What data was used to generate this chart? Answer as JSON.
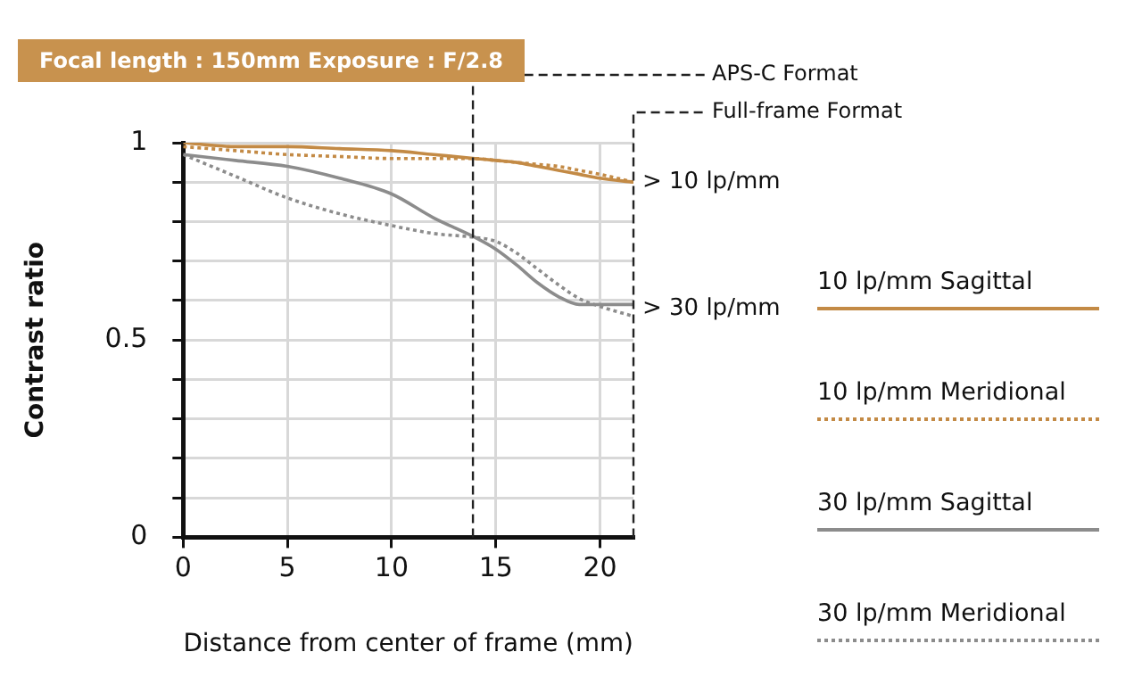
{
  "chart_data": {
    "type": "line",
    "title": "Focal length : 150mm Exposure : F/2.8",
    "xlabel": "Distance from center of frame (mm)",
    "ylabel": "Contrast ratio",
    "x": [
      0,
      2.5,
      5,
      7.5,
      10,
      12,
      14,
      15,
      16,
      17,
      18,
      19,
      20,
      21.6
    ],
    "series": [
      {
        "name": "10 lp/mm Sagittal",
        "color": "#c38a45",
        "line_style": "solid",
        "values": [
          1.0,
          0.99,
          0.99,
          0.985,
          0.98,
          0.97,
          0.96,
          0.955,
          0.95,
          0.94,
          0.93,
          0.92,
          0.91,
          0.9
        ]
      },
      {
        "name": "10 lp/mm Meridional",
        "color": "#c38a45",
        "line_style": "dotted",
        "values": [
          0.99,
          0.98,
          0.97,
          0.965,
          0.96,
          0.96,
          0.96,
          0.955,
          0.95,
          0.945,
          0.94,
          0.93,
          0.92,
          0.9
        ]
      },
      {
        "name": "30 lp/mm Sagittal",
        "color": "#8c8c8c",
        "line_style": "solid",
        "values": [
          0.97,
          0.955,
          0.94,
          0.91,
          0.87,
          0.81,
          0.76,
          0.73,
          0.69,
          0.645,
          0.61,
          0.59,
          0.59,
          0.59
        ]
      },
      {
        "name": "30 lp/mm Meridional",
        "color": "#8c8c8c",
        "line_style": "dotted",
        "values": [
          0.97,
          0.915,
          0.86,
          0.82,
          0.79,
          0.77,
          0.76,
          0.75,
          0.72,
          0.68,
          0.64,
          0.605,
          0.585,
          0.56
        ]
      }
    ],
    "xlim": [
      0,
      21.6
    ],
    "xticks": [
      0,
      5,
      10,
      15,
      20
    ],
    "ylim": [
      0,
      1
    ],
    "yticks": [
      0,
      {
        "value": 0.1,
        "label": null
      },
      {
        "value": 0.2,
        "label": null
      },
      {
        "value": 0.3,
        "label": null
      },
      {
        "value": 0.4,
        "label": null
      },
      0.5,
      {
        "value": 0.6,
        "label": null
      },
      {
        "value": 0.7,
        "label": null
      },
      {
        "value": 0.8,
        "label": null
      },
      {
        "value": 0.9,
        "label": null
      },
      1
    ],
    "ref_lines": [
      {
        "axis": "x",
        "value": 13.9,
        "label": "APS-C Format",
        "line_style": "dashed"
      },
      {
        "axis": "x",
        "value": 21.6,
        "label": "Full-frame Format",
        "line_style": "dashed"
      }
    ],
    "annotations": [
      {
        "text": "> 10 lp/mm",
        "x": 21.6,
        "y": 0.9
      },
      {
        "text": "> 30 lp/mm",
        "x": 21.6,
        "y": 0.58
      }
    ],
    "grid": true,
    "legend": "right",
    "marker": "none"
  }
}
